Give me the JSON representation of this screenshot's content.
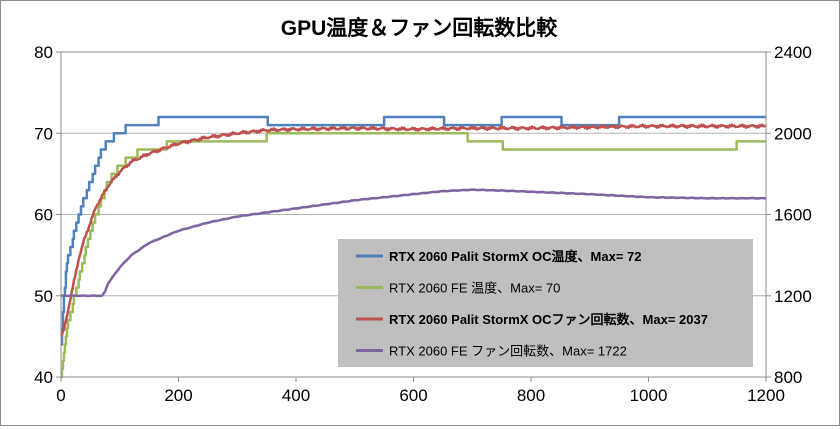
{
  "chart_data": {
    "type": "line",
    "title": "GPU温度＆ファン回転数比較",
    "xlabel": "",
    "ylabel": "",
    "y2label": "",
    "xlim": [
      0,
      1200
    ],
    "ylim": [
      40,
      80
    ],
    "y2lim": [
      800,
      2400
    ],
    "x_ticks": [
      "0",
      "200",
      "400",
      "600",
      "800",
      "1000",
      "1200"
    ],
    "y_ticks": [
      "40",
      "50",
      "60",
      "70",
      "80"
    ],
    "y2_ticks": [
      "800",
      "1200",
      "1600",
      "2000",
      "2400"
    ],
    "grid": "horizontal",
    "legend_position": "bottom-right",
    "colors": {
      "palit_temp": "#4f81bd",
      "fe_temp": "#9bbb59",
      "palit_fan": "#c0504d",
      "fe_fan": "#8064a2",
      "legend_bg": "#bfbfbf",
      "grid": "#b3b3b3"
    },
    "legend": [
      {
        "label": "RTX 2060 Palit StormX OC温度、Max= 72",
        "bold": true,
        "color": "#4f81bd"
      },
      {
        "label": "RTX 2060 FE 温度、Max= 70",
        "bold": false,
        "color": "#9bbb59"
      },
      {
        "label": "RTX 2060 Palit StormX OCファン回転数、Max= 2037",
        "bold": true,
        "color": "#c0504d"
      },
      {
        "label": "RTX 2060 FE ファン回転数、Max= 1722",
        "bold": false,
        "color": "#8064a2"
      }
    ],
    "series": [
      {
        "name": "RTX 2060 Palit StormX OC温度、Max= 72",
        "axis": "left",
        "color": "#4f81bd",
        "x": [
          0,
          5,
          10,
          20,
          30,
          40,
          50,
          60,
          70,
          80,
          90,
          100,
          110,
          120,
          150,
          180,
          200,
          300,
          400,
          500,
          600,
          700,
          800,
          900,
          1000,
          1100,
          1200
        ],
        "values": [
          44,
          50,
          54,
          57,
          60,
          62,
          64,
          66,
          68,
          69,
          69.5,
          70,
          70.5,
          71,
          71,
          72,
          72,
          72,
          71,
          71,
          72,
          71,
          72,
          71,
          72,
          72,
          72
        ]
      },
      {
        "name": "RTX 2060 FE 温度、Max= 70",
        "axis": "left",
        "color": "#9bbb59",
        "x": [
          0,
          5,
          10,
          20,
          30,
          40,
          50,
          60,
          70,
          80,
          90,
          100,
          120,
          140,
          160,
          180,
          200,
          250,
          300,
          400,
          500,
          600,
          680,
          700,
          800,
          900,
          1000,
          1100,
          1200
        ],
        "values": [
          40,
          43,
          46,
          49,
          52,
          55,
          58,
          60,
          62,
          64,
          65,
          66,
          67,
          68,
          68,
          68.5,
          69,
          69,
          69,
          70,
          70,
          70,
          70,
          69,
          68,
          68,
          68,
          68,
          69
        ]
      },
      {
        "name": "RTX 2060 Palit StormX OCファン回転数、Max= 2037",
        "axis": "right",
        "color": "#c0504d",
        "x": [
          0,
          5,
          10,
          20,
          30,
          40,
          50,
          60,
          80,
          100,
          120,
          150,
          200,
          250,
          300,
          350,
          400,
          500,
          600,
          700,
          800,
          900,
          1000,
          1100,
          1200
        ],
        "values": [
          1000,
          1030,
          1100,
          1240,
          1380,
          1480,
          1560,
          1640,
          1740,
          1810,
          1860,
          1900,
          1950,
          1980,
          2000,
          2015,
          2020,
          2025,
          2020,
          2025,
          2025,
          2030,
          2035,
          2035,
          2035
        ]
      },
      {
        "name": "RTX 2060 FE ファン回転数、Max= 1722",
        "axis": "right",
        "color": "#8064a2",
        "x": [
          0,
          10,
          20,
          40,
          60,
          70,
          75,
          80,
          100,
          120,
          150,
          200,
          250,
          300,
          400,
          500,
          600,
          650,
          700,
          750,
          800,
          900,
          1000,
          1100,
          1200
        ],
        "values": [
          1200,
          1200,
          1200,
          1200,
          1200,
          1200,
          1220,
          1260,
          1340,
          1400,
          1460,
          1520,
          1560,
          1590,
          1630,
          1670,
          1700,
          1715,
          1722,
          1718,
          1712,
          1700,
          1685,
          1680,
          1680
        ]
      }
    ]
  }
}
